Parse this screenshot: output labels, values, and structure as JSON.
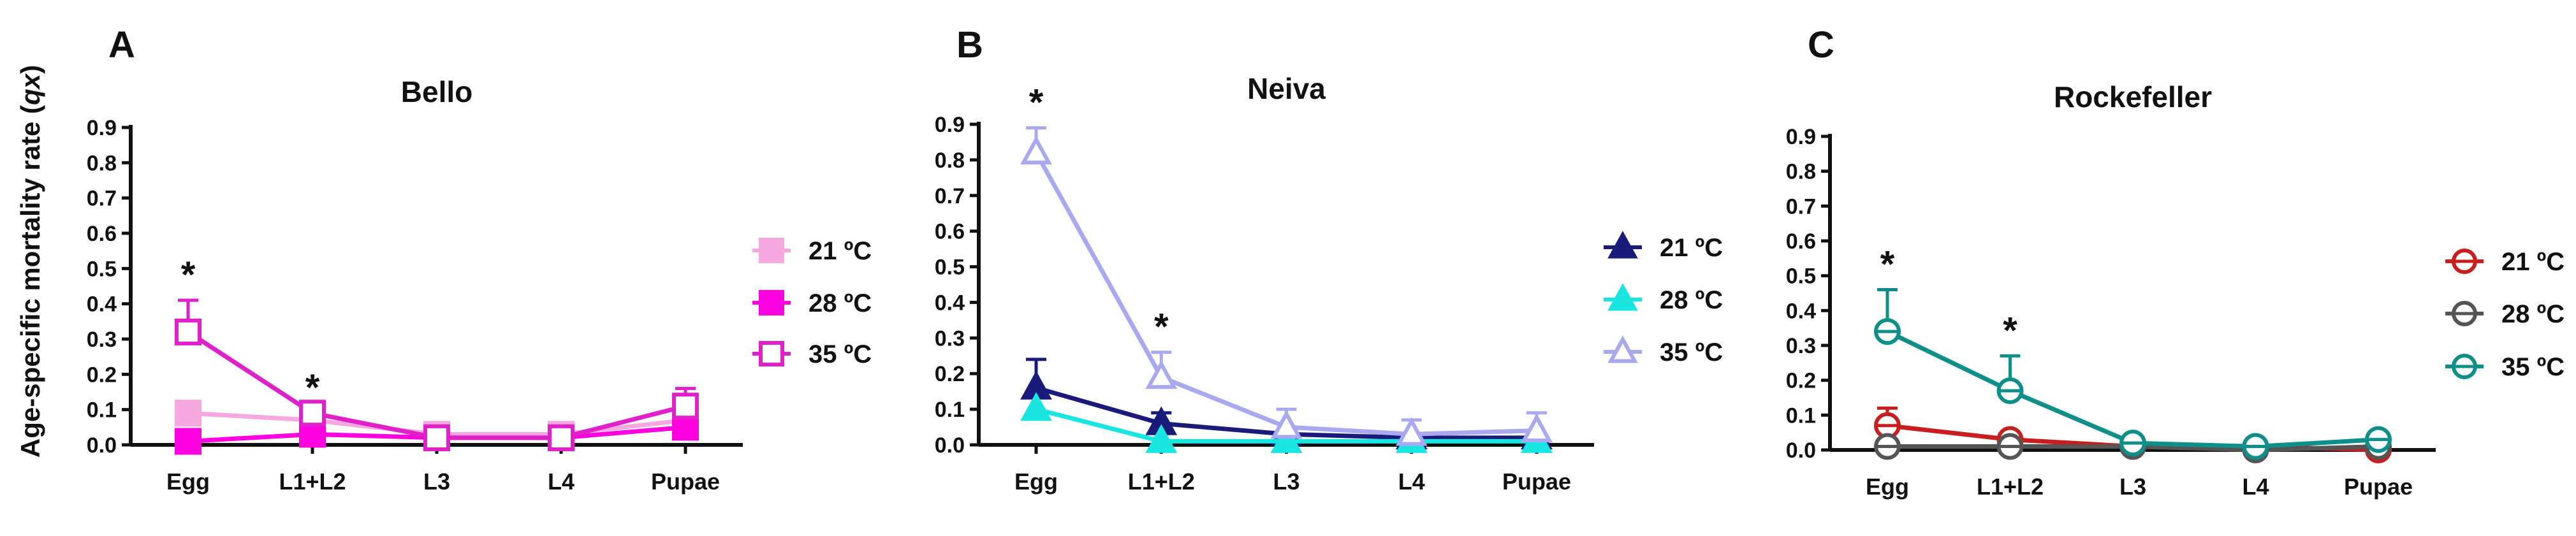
{
  "figure": {
    "ylabel": "Age-specific mortality rate (qx)",
    "ylabel_main": "Age-specific mortality rate (",
    "ylabel_var": "qx",
    "ylabel_close": ")"
  },
  "chart_data": [
    {
      "type": "line",
      "panel_label": "A",
      "title": "Bello",
      "categories": [
        "Egg",
        "L1+L2",
        "L3",
        "L4",
        "Pupae"
      ],
      "ylim": [
        0,
        0.9
      ],
      "yticks": [
        "0.0",
        "0.1",
        "0.2",
        "0.3",
        "0.4",
        "0.5",
        "0.6",
        "0.7",
        "0.8",
        "0.9"
      ],
      "series": [
        {
          "name": "21 ºC",
          "values": [
            0.09,
            0.07,
            0.03,
            0.03,
            0.07
          ],
          "errors": [
            0,
            0,
            0,
            0,
            0
          ],
          "color": "#f7a8e0",
          "marker": "square",
          "filled": true
        },
        {
          "name": "28 ºC",
          "values": [
            0.01,
            0.03,
            0.02,
            0.02,
            0.05
          ],
          "errors": [
            0,
            0,
            0,
            0,
            0
          ],
          "color": "#ff00e0",
          "marker": "square",
          "filled": true
        },
        {
          "name": "35 ºC",
          "values": [
            0.32,
            0.09,
            0.02,
            0.02,
            0.11
          ],
          "errors": [
            0.09,
            0,
            0,
            0,
            0.05
          ],
          "color": "#e020c8",
          "marker": "square",
          "filled": false
        }
      ],
      "significance": [
        {
          "category": "Egg",
          "label": "*"
        },
        {
          "category": "L1+L2",
          "label": "*"
        }
      ]
    },
    {
      "type": "line",
      "panel_label": "B",
      "title": "Neiva",
      "categories": [
        "Egg",
        "L1+L2",
        "L3",
        "L4",
        "Pupae"
      ],
      "ylim": [
        0,
        0.9
      ],
      "yticks": [
        "0.0",
        "0.1",
        "0.2",
        "0.3",
        "0.4",
        "0.5",
        "0.6",
        "0.7",
        "0.8",
        "0.9"
      ],
      "series": [
        {
          "name": "21 ºC",
          "values": [
            0.16,
            0.06,
            0.03,
            0.02,
            0.02
          ],
          "errors": [
            0.08,
            0.03,
            0,
            0,
            0
          ],
          "color": "#1a1a7a",
          "marker": "triangle",
          "filled": true
        },
        {
          "name": "28 ºC",
          "values": [
            0.1,
            0.01,
            0.01,
            0.01,
            0.01
          ],
          "errors": [
            0,
            0,
            0,
            0,
            0
          ],
          "color": "#19e6e0",
          "marker": "triangle",
          "filled": true
        },
        {
          "name": "35 ºC",
          "values": [
            0.82,
            0.19,
            0.05,
            0.03,
            0.04
          ],
          "errors": [
            0.07,
            0.07,
            0.05,
            0.04,
            0.05
          ],
          "color": "#a9a9f0",
          "marker": "triangle",
          "filled": false
        }
      ],
      "significance": [
        {
          "category": "Egg",
          "label": "*"
        },
        {
          "category": "L1+L2",
          "label": "*"
        }
      ]
    },
    {
      "type": "line",
      "panel_label": "C",
      "title": "Rockefeller",
      "categories": [
        "Egg",
        "L1+L2",
        "L3",
        "L4",
        "Pupae"
      ],
      "ylim": [
        0,
        0.9
      ],
      "yticks": [
        "0.0",
        "0.1",
        "0.2",
        "0.3",
        "0.4",
        "0.5",
        "0.6",
        "0.7",
        "0.8",
        "0.9"
      ],
      "series": [
        {
          "name": "21 ºC",
          "values": [
            0.07,
            0.03,
            0.01,
            0.01,
            0.0
          ],
          "errors": [
            0.05,
            0,
            0,
            0,
            0
          ],
          "color": "#c81e1e",
          "marker": "circle",
          "filled": false
        },
        {
          "name": "28 ºC",
          "values": [
            0.01,
            0.01,
            0.01,
            0.0,
            0.01
          ],
          "errors": [
            0,
            0,
            0,
            0,
            0
          ],
          "color": "#555555",
          "marker": "circle",
          "filled": false
        },
        {
          "name": "35 ºC",
          "values": [
            0.34,
            0.17,
            0.02,
            0.01,
            0.03
          ],
          "errors": [
            0.12,
            0.1,
            0.01,
            0,
            0.02
          ],
          "color": "#0f8f8a",
          "marker": "circle",
          "filled": false
        }
      ],
      "significance": [
        {
          "category": "Egg",
          "label": "*"
        },
        {
          "category": "L1+L2",
          "label": "*"
        }
      ]
    }
  ]
}
